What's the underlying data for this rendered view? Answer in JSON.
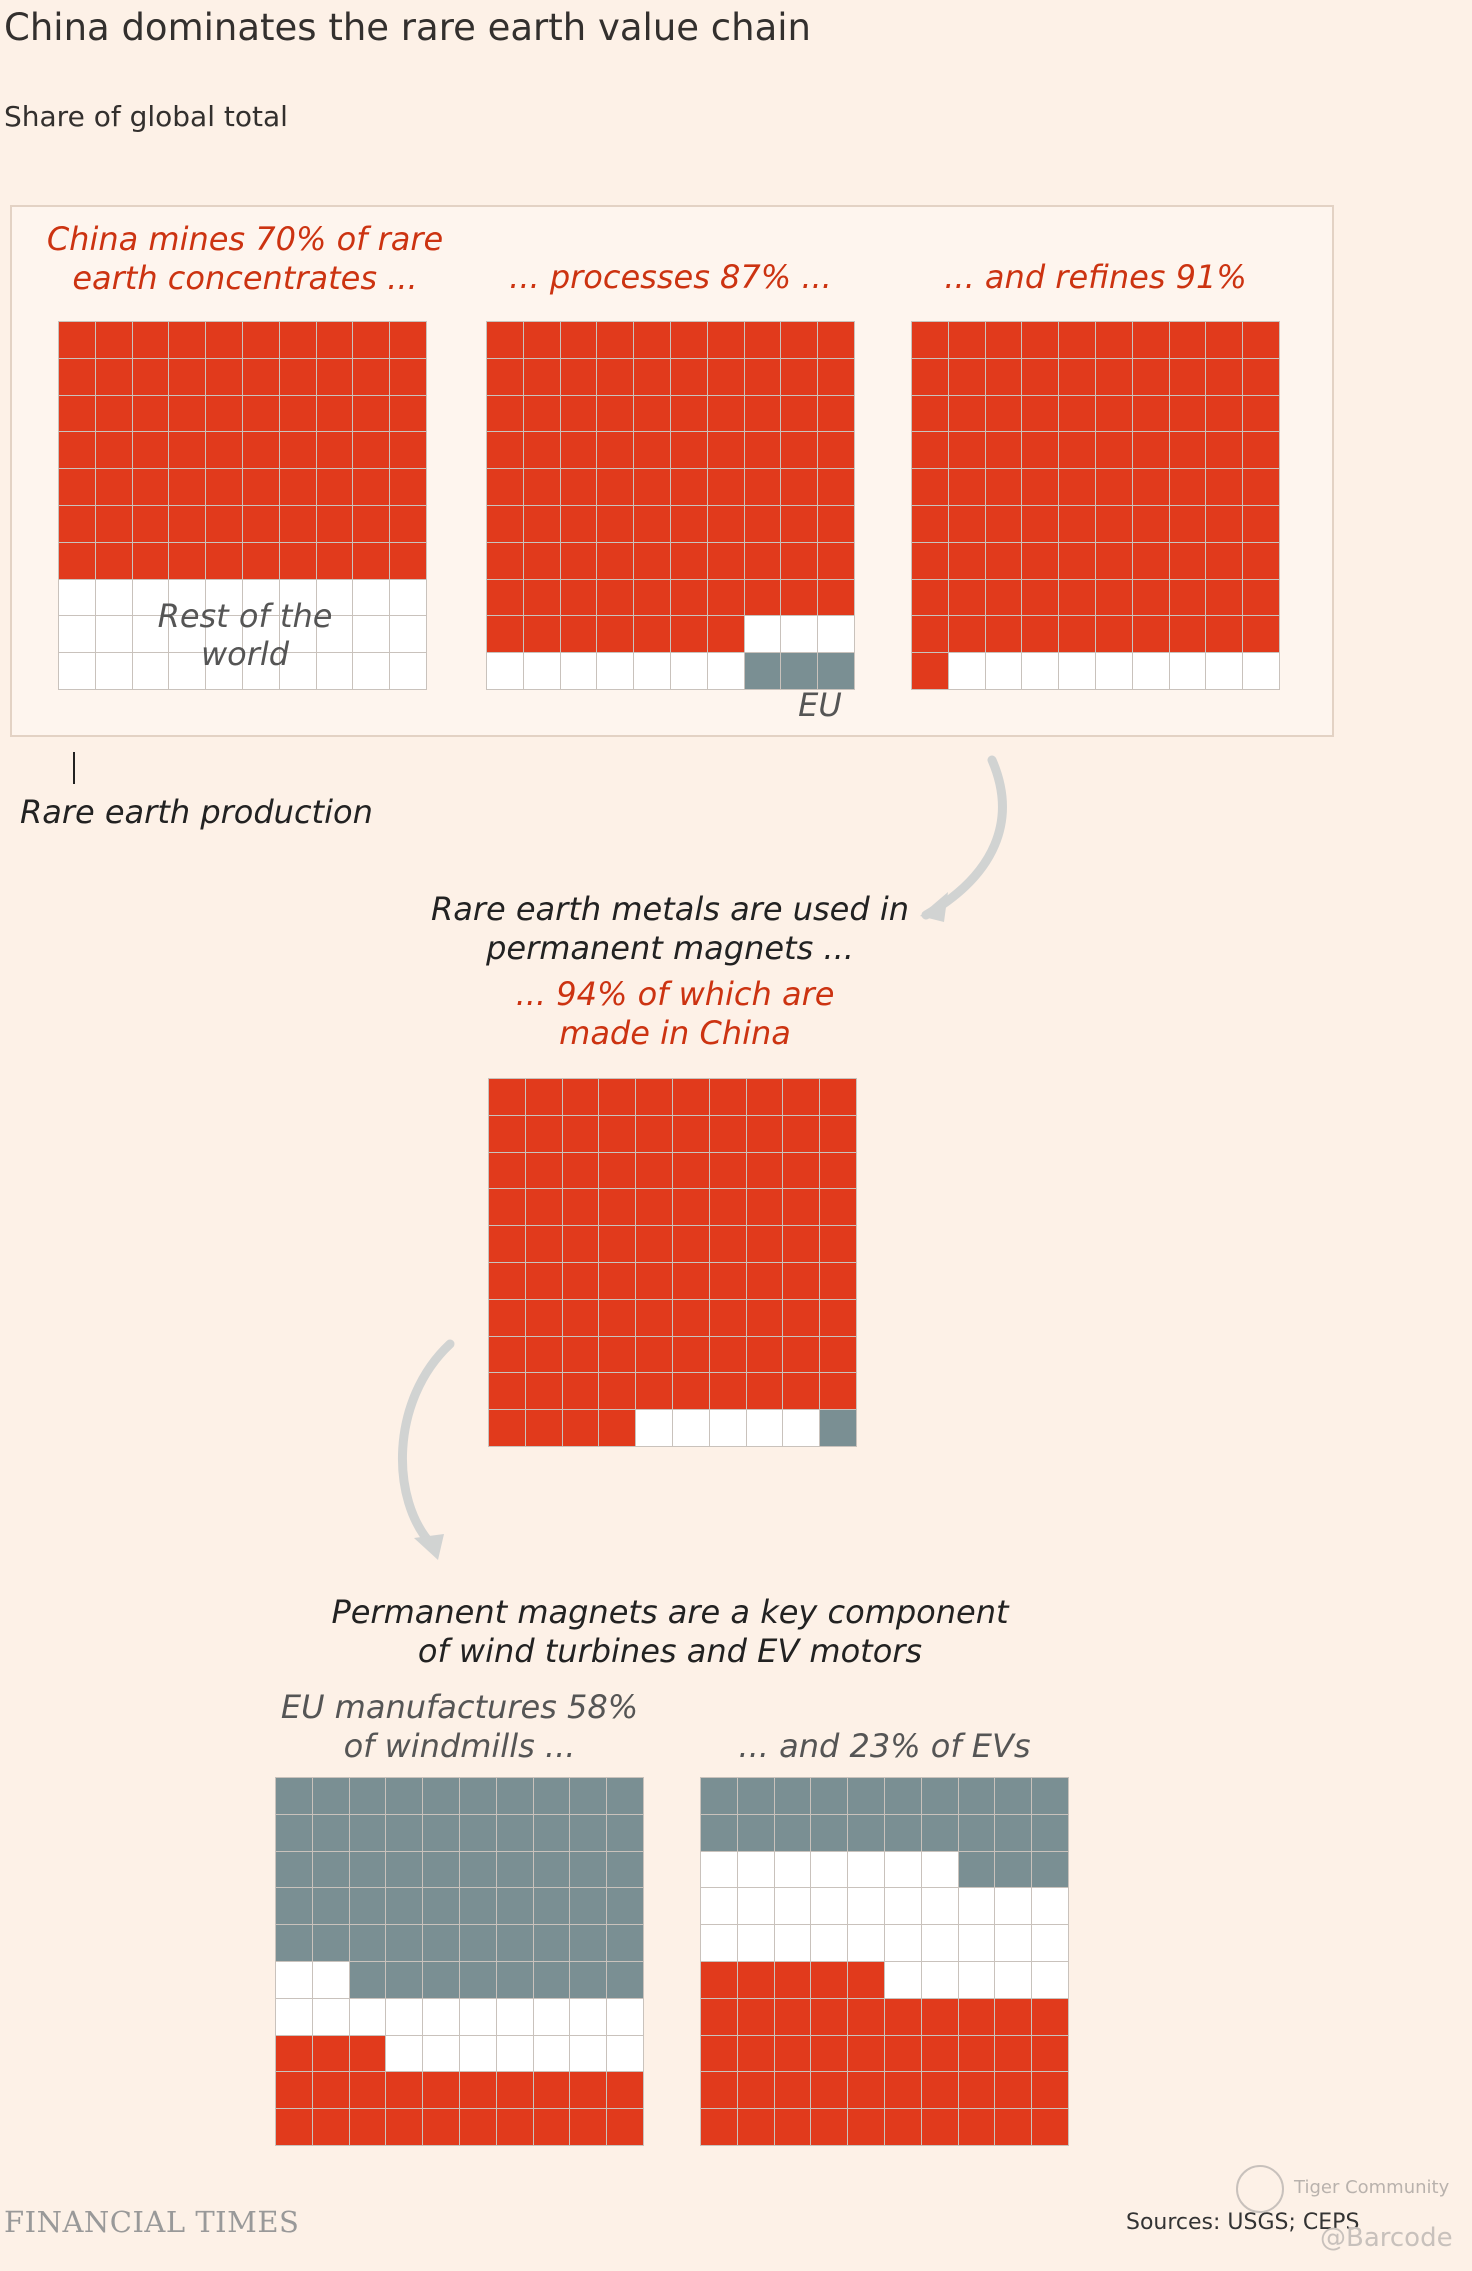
{
  "title": "China dominates the rare earth value chain",
  "subtitle": "Share of global total",
  "labels": {
    "mines": "China mines 70% of rare earth concentrates ...",
    "processes": "... processes 87% ...",
    "refines": "... and refines 91%",
    "rest_of_world": "Rest of the world",
    "eu": "EU",
    "rare_earth_production": "Rare earth production",
    "magnets_intro": "Rare earth metals are used in permanent magnets ...",
    "magnets_china": "... 94% of which are made in China",
    "components": "Permanent magnets are a key component of wind turbines and EV motors",
    "windmills": "EU manufactures 58% of windmills ...",
    "evs": "... and 23% of EVs"
  },
  "footer": {
    "brand": "FINANCIAL TIMES",
    "source": "Sources: USGS; CEPS",
    "watermark_community": "Tiger Community",
    "watermark_handle": "@Barcode"
  },
  "colors": {
    "china": "#e13a1c",
    "eu": "#7a8f93",
    "rest_of_world": "#ffffff",
    "background": "#fdf1e7"
  },
  "chart_data": [
    {
      "type": "waffle",
      "title": "China mines 70% of rare earth concentrates ...",
      "china": 70,
      "eu": 0,
      "rest_of_world": 30
    },
    {
      "type": "waffle",
      "title": "... processes 87% ...",
      "china": 87,
      "eu": 3,
      "rest_of_world": 10
    },
    {
      "type": "waffle",
      "title": "... and refines 91%",
      "china": 91,
      "eu": 0,
      "rest_of_world": 9
    },
    {
      "type": "waffle",
      "title": "... 94% of which are made in China",
      "china": 94,
      "eu": 1,
      "rest_of_world": 5
    },
    {
      "type": "waffle",
      "title": "EU manufactures 58% of windmills ...",
      "eu": 58,
      "rest_of_world": 19,
      "china": 23
    },
    {
      "type": "waffle",
      "title": "... and 23% of EVs",
      "eu": 23,
      "rest_of_world": 32,
      "china": 45
    }
  ]
}
